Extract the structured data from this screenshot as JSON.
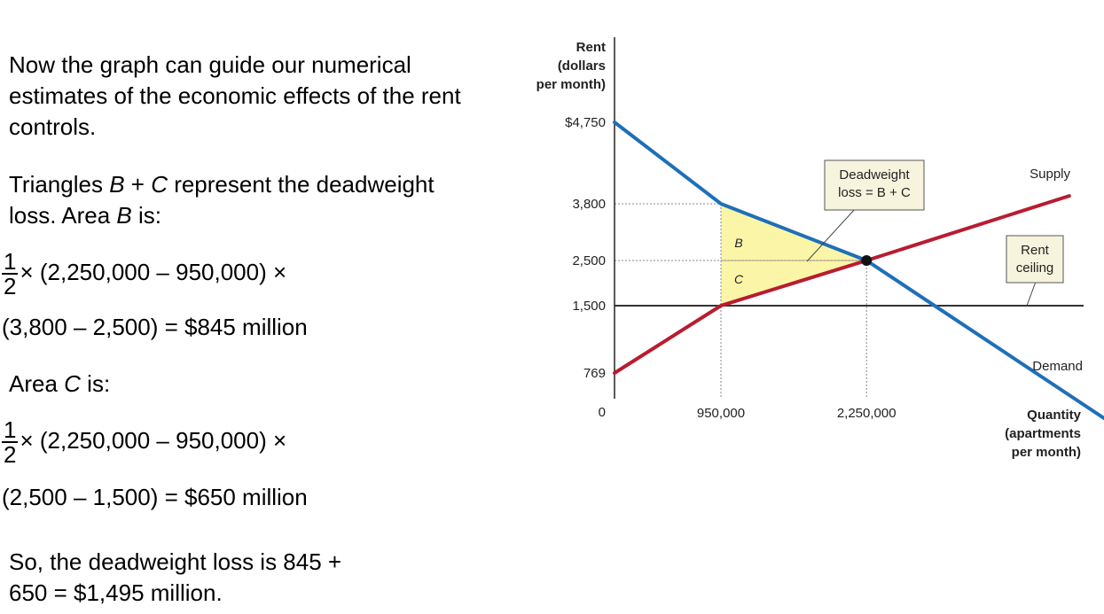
{
  "text": {
    "intro": "Now the graph can guide our numerical estimates of the economic effects of the rent controls.",
    "triangles_pre": "Triangles ",
    "var_b": "B",
    "plus": " + ",
    "var_c": "C",
    "triangles_post": " represent the deadweight loss. Area ",
    "area_is": " is:",
    "frac_num": "1",
    "frac_den": "2",
    "eq_b_line1": "× (2,250,000 – 950,000) ×",
    "eq_b_line2": "(3,800 – 2,500) = $845 million",
    "area_c_pre": "Area ",
    "eq_c_line1": "× (2,250,000 – 950,000) ×",
    "eq_c_line2": "(2,500 – 1,500) = $650 million",
    "conclusion": "So, the deadweight loss is 845 + 650 = $1,495 million."
  },
  "chart_data": {
    "type": "line",
    "ylabel": "Rent (dollars per month)",
    "ylabel_lines": [
      "Rent",
      "(dollars",
      "per month)"
    ],
    "xlabel": "Quantity (apartments per month)",
    "xlabel_lines": [
      "Quantity",
      "(apartments",
      "per month)"
    ],
    "y_ticks": [
      {
        "value": 4750,
        "label": "$4,750"
      },
      {
        "value": 3800,
        "label": "3,800"
      },
      {
        "value": 2500,
        "label": "2,500"
      },
      {
        "value": 1500,
        "label": "1,500"
      },
      {
        "value": 769,
        "label": "769"
      },
      {
        "value": 0,
        "label": "0"
      }
    ],
    "x_ticks": [
      {
        "value": 950000,
        "label": "950,000"
      },
      {
        "value": 2250000,
        "label": "2,250,000"
      }
    ],
    "series": [
      {
        "name": "Demand",
        "color": "#1f6fb8",
        "points": [
          [
            0,
            4750
          ],
          [
            950000,
            3800
          ],
          [
            2250000,
            2500
          ],
          [
            4900000,
            -150
          ]
        ]
      },
      {
        "name": "Supply",
        "color": "#b81c30",
        "points": [
          [
            0,
            769
          ],
          [
            950000,
            1500
          ],
          [
            2250000,
            2500
          ],
          [
            4060000,
            3892
          ]
        ]
      }
    ],
    "rent_ceiling": {
      "value": 1500,
      "label_lines": [
        "Rent",
        "ceiling"
      ],
      "color": "#333333"
    },
    "equilibrium": {
      "x": 2250000,
      "y": 2500
    },
    "region_B_label": "B",
    "region_C_label": "C",
    "deadweight_label_lines": [
      "Deadweight",
      "loss = B + C"
    ],
    "triangle_fill": "#fbf5a8",
    "callout_fill": "#f7f4de"
  }
}
